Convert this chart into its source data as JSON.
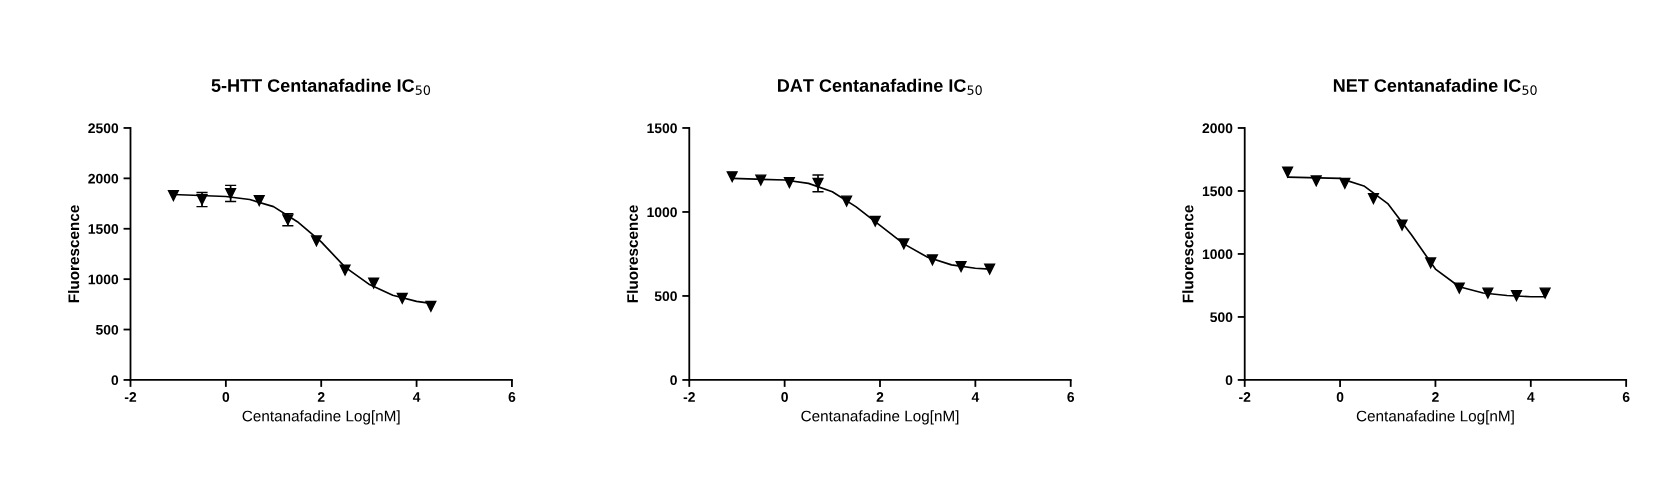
{
  "chart_data": [
    {
      "type": "scatter",
      "title": "5-HTT Centanafadine IC$_{50}$",
      "xlabel": "Centanafadine Log[nM]",
      "ylabel": "Fluorescence",
      "xlim": [
        -2,
        6
      ],
      "xticks": [
        -2,
        0,
        2,
        4,
        6
      ],
      "ylim": [
        0,
        2500
      ],
      "yticks": [
        0,
        500,
        1000,
        1500,
        2000,
        2500
      ],
      "grid": false,
      "legend": false,
      "series": [
        {
          "marker": "triangle",
          "color": "#000000",
          "x": [
            -1.1,
            -0.5,
            0.1,
            0.7,
            1.3,
            1.9,
            2.5,
            3.1,
            3.7,
            4.3
          ],
          "values": [
            1830,
            1790,
            1850,
            1780,
            1590,
            1380,
            1090,
            960,
            810,
            730
          ],
          "errors": [
            null,
            70,
            80,
            null,
            60,
            null,
            null,
            null,
            null,
            null
          ]
        },
        {
          "type": "line",
          "marker": "none",
          "color": "#000000",
          "x": [
            -1.1,
            0,
            0.5,
            1,
            1.5,
            2,
            2.5,
            3,
            3.5,
            4,
            4.3
          ],
          "values": [
            1840,
            1820,
            1790,
            1720,
            1570,
            1370,
            1120,
            950,
            840,
            780,
            760
          ]
        }
      ]
    },
    {
      "type": "scatter",
      "title": "DAT Centanafadine IC$_{50}$",
      "xlabel": "Centanafadine Log[nM]",
      "ylabel": "Fluorescence",
      "xlim": [
        -2,
        6
      ],
      "xticks": [
        -2,
        0,
        2,
        4,
        6
      ],
      "ylim": [
        0,
        1500
      ],
      "yticks": [
        0,
        500,
        1000,
        1500
      ],
      "grid": false,
      "legend": false,
      "series": [
        {
          "marker": "triangle",
          "color": "#000000",
          "x": [
            -1.1,
            -0.5,
            0.1,
            0.7,
            1.3,
            1.9,
            2.5,
            3.1,
            3.7,
            4.3
          ],
          "values": [
            1210,
            1190,
            1175,
            1170,
            1065,
            945,
            810,
            715,
            675,
            660
          ],
          "errors": [
            null,
            null,
            null,
            50,
            null,
            null,
            null,
            null,
            null,
            null
          ]
        },
        {
          "type": "line",
          "marker": "none",
          "color": "#000000",
          "x": [
            -1.1,
            0,
            0.5,
            1,
            1.5,
            2,
            2.5,
            3,
            3.5,
            4,
            4.3
          ],
          "values": [
            1200,
            1190,
            1170,
            1120,
            1030,
            920,
            810,
            730,
            685,
            665,
            660
          ]
        }
      ]
    },
    {
      "type": "scatter",
      "title": "NET Centanafadine IC$_{50}$",
      "xlabel": "Centanafadine Log[nM]",
      "ylabel": "Fluorescence",
      "xlim": [
        -2,
        6
      ],
      "xticks": [
        -2,
        0,
        2,
        4,
        6
      ],
      "ylim": [
        0,
        2000
      ],
      "yticks": [
        0,
        500,
        1000,
        1500,
        2000
      ],
      "grid": false,
      "legend": false,
      "series": [
        {
          "marker": "triangle",
          "color": "#000000",
          "x": [
            -1.1,
            -0.5,
            0.1,
            0.7,
            1.3,
            1.9,
            2.5,
            3.1,
            3.7,
            4.3
          ],
          "values": [
            1650,
            1580,
            1560,
            1440,
            1230,
            930,
            730,
            690,
            670,
            690
          ]
        },
        {
          "type": "line",
          "marker": "none",
          "color": "#000000",
          "x": [
            -1.1,
            0,
            0.5,
            1,
            1.5,
            2,
            2.5,
            3,
            3.5,
            4,
            4.3
          ],
          "values": [
            1610,
            1600,
            1540,
            1400,
            1150,
            880,
            740,
            690,
            670,
            660,
            660
          ]
        }
      ]
    }
  ]
}
